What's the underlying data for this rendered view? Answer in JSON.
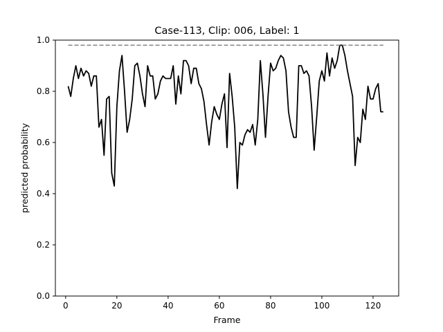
{
  "chart_data": {
    "type": "line",
    "title": "Case-113, Clip: 006, Label: 1",
    "xlabel": "Frame",
    "ylabel": "predicted probability",
    "xlim": [
      -4,
      130
    ],
    "ylim": [
      0.0,
      1.0
    ],
    "xticks": [
      0,
      20,
      40,
      60,
      80,
      100,
      120
    ],
    "yticks": [
      0.0,
      0.2,
      0.4,
      0.6,
      0.8,
      1.0
    ],
    "xtick_labels": [
      "0",
      "20",
      "40",
      "60",
      "80",
      "100",
      "120"
    ],
    "ytick_labels": [
      "0.0",
      "0.2",
      "0.4",
      "0.6",
      "0.8",
      "1.0"
    ],
    "grid": false,
    "series": [
      {
        "color": "#000000",
        "style": "solid",
        "x": [
          1,
          2,
          3,
          4,
          5,
          6,
          7,
          8,
          9,
          10,
          11,
          12,
          13,
          14,
          15,
          16,
          17,
          18,
          19,
          20,
          21,
          22,
          23,
          24,
          25,
          26,
          27,
          28,
          29,
          30,
          31,
          32,
          33,
          34,
          35,
          36,
          37,
          38,
          39,
          40,
          41,
          42,
          43,
          44,
          45,
          46,
          47,
          48,
          49,
          50,
          51,
          52,
          53,
          54,
          55,
          56,
          57,
          58,
          59,
          60,
          61,
          62,
          63,
          64,
          65,
          66,
          67,
          68,
          69,
          70,
          71,
          72,
          73,
          74,
          75,
          76,
          77,
          78,
          79,
          80,
          81,
          82,
          83,
          84,
          85,
          86,
          87,
          88,
          89,
          90,
          91,
          92,
          93,
          94,
          95,
          96,
          97,
          98,
          99,
          100,
          101,
          102,
          103,
          104,
          105,
          106,
          107,
          108,
          109,
          110,
          111,
          112,
          113,
          114,
          115,
          116,
          117,
          118,
          119,
          120,
          121,
          122,
          123,
          124
        ],
        "y": [
          0.82,
          0.78,
          0.85,
          0.9,
          0.85,
          0.89,
          0.86,
          0.88,
          0.87,
          0.82,
          0.86,
          0.86,
          0.66,
          0.69,
          0.55,
          0.77,
          0.78,
          0.48,
          0.43,
          0.74,
          0.88,
          0.94,
          0.8,
          0.64,
          0.69,
          0.77,
          0.9,
          0.91,
          0.86,
          0.79,
          0.74,
          0.9,
          0.86,
          0.86,
          0.77,
          0.79,
          0.84,
          0.86,
          0.85,
          0.85,
          0.85,
          0.9,
          0.75,
          0.86,
          0.79,
          0.92,
          0.92,
          0.9,
          0.83,
          0.89,
          0.89,
          0.83,
          0.81,
          0.76,
          0.67,
          0.59,
          0.68,
          0.74,
          0.71,
          0.69,
          0.75,
          0.79,
          0.58,
          0.87,
          0.78,
          0.66,
          0.42,
          0.6,
          0.59,
          0.63,
          0.65,
          0.64,
          0.67,
          0.59,
          0.69,
          0.92,
          0.79,
          0.62,
          0.78,
          0.91,
          0.88,
          0.89,
          0.92,
          0.94,
          0.93,
          0.88,
          0.72,
          0.66,
          0.62,
          0.62,
          0.9,
          0.9,
          0.87,
          0.88,
          0.86,
          0.74,
          0.57,
          0.7,
          0.84,
          0.88,
          0.84,
          0.95,
          0.86,
          0.93,
          0.89,
          0.92,
          0.98,
          0.98,
          0.94,
          0.88,
          0.83,
          0.78,
          0.51,
          0.62,
          0.6,
          0.73,
          0.69,
          0.82,
          0.77,
          0.77,
          0.81,
          0.83,
          0.72,
          0.72
        ]
      },
      {
        "color": "#808080",
        "style": "dashed",
        "x": [
          1,
          124
        ],
        "y": [
          0.98,
          0.98
        ]
      }
    ]
  }
}
